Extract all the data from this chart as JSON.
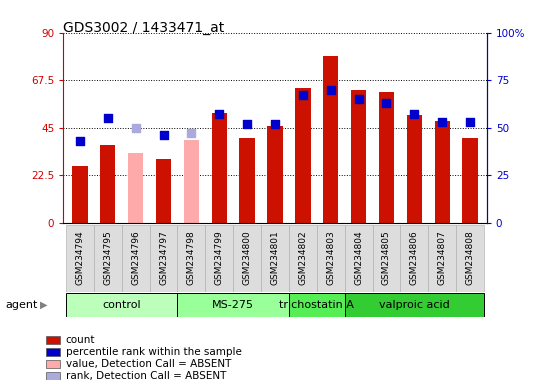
{
  "title": "GDS3002 / 1433471_at",
  "samples": [
    "GSM234794",
    "GSM234795",
    "GSM234796",
    "GSM234797",
    "GSM234798",
    "GSM234799",
    "GSM234800",
    "GSM234801",
    "GSM234802",
    "GSM234803",
    "GSM234804",
    "GSM234805",
    "GSM234806",
    "GSM234807",
    "GSM234808"
  ],
  "bar_values": [
    27,
    37,
    33,
    30,
    39,
    52,
    40,
    46,
    64,
    79,
    63,
    62,
    51,
    48,
    40
  ],
  "bar_absent": [
    false,
    false,
    true,
    false,
    true,
    false,
    false,
    false,
    false,
    false,
    false,
    false,
    false,
    false,
    false
  ],
  "rank_values": [
    43,
    55,
    50,
    46,
    47,
    57,
    52,
    52,
    67,
    70,
    65,
    63,
    57,
    53,
    53
  ],
  "rank_absent": [
    false,
    false,
    true,
    false,
    true,
    false,
    false,
    false,
    false,
    false,
    false,
    false,
    false,
    false,
    false
  ],
  "bar_color_present": "#cc1100",
  "bar_color_absent": "#ffaaaa",
  "rank_color_present": "#0000cc",
  "rank_color_absent": "#aaaadd",
  "ylim_left": [
    0,
    90
  ],
  "ylim_right": [
    0,
    100
  ],
  "yticks_left": [
    0,
    22.5,
    45,
    67.5,
    90
  ],
  "yticks_right": [
    0,
    25,
    50,
    75,
    100
  ],
  "ytick_labels_left": [
    "0",
    "22.5",
    "45",
    "67.5",
    "90"
  ],
  "ytick_labels_right": [
    "0",
    "25",
    "50",
    "75",
    "100%"
  ],
  "hlines": [
    22.5,
    45,
    67.5
  ],
  "groups": [
    {
      "label": "control",
      "start": 0,
      "end": 3,
      "color": "#bbffbb"
    },
    {
      "label": "MS-275",
      "start": 4,
      "end": 7,
      "color": "#99ff99"
    },
    {
      "label": "trichostatin A",
      "start": 8,
      "end": 9,
      "color": "#55ee55"
    },
    {
      "label": "valproic acid",
      "start": 10,
      "end": 14,
      "color": "#33cc33"
    }
  ],
  "agent_label": "agent",
  "bar_width": 0.55,
  "rank_marker_size": 28,
  "rank_marker": "s",
  "left_axis_color": "#cc0000",
  "right_axis_color": "#0000cc",
  "legend_items": [
    {
      "label": "count",
      "color": "#cc1100"
    },
    {
      "label": "percentile rank within the sample",
      "color": "#0000cc"
    },
    {
      "label": "value, Detection Call = ABSENT",
      "color": "#ffaaaa"
    },
    {
      "label": "rank, Detection Call = ABSENT",
      "color": "#aaaadd"
    }
  ]
}
